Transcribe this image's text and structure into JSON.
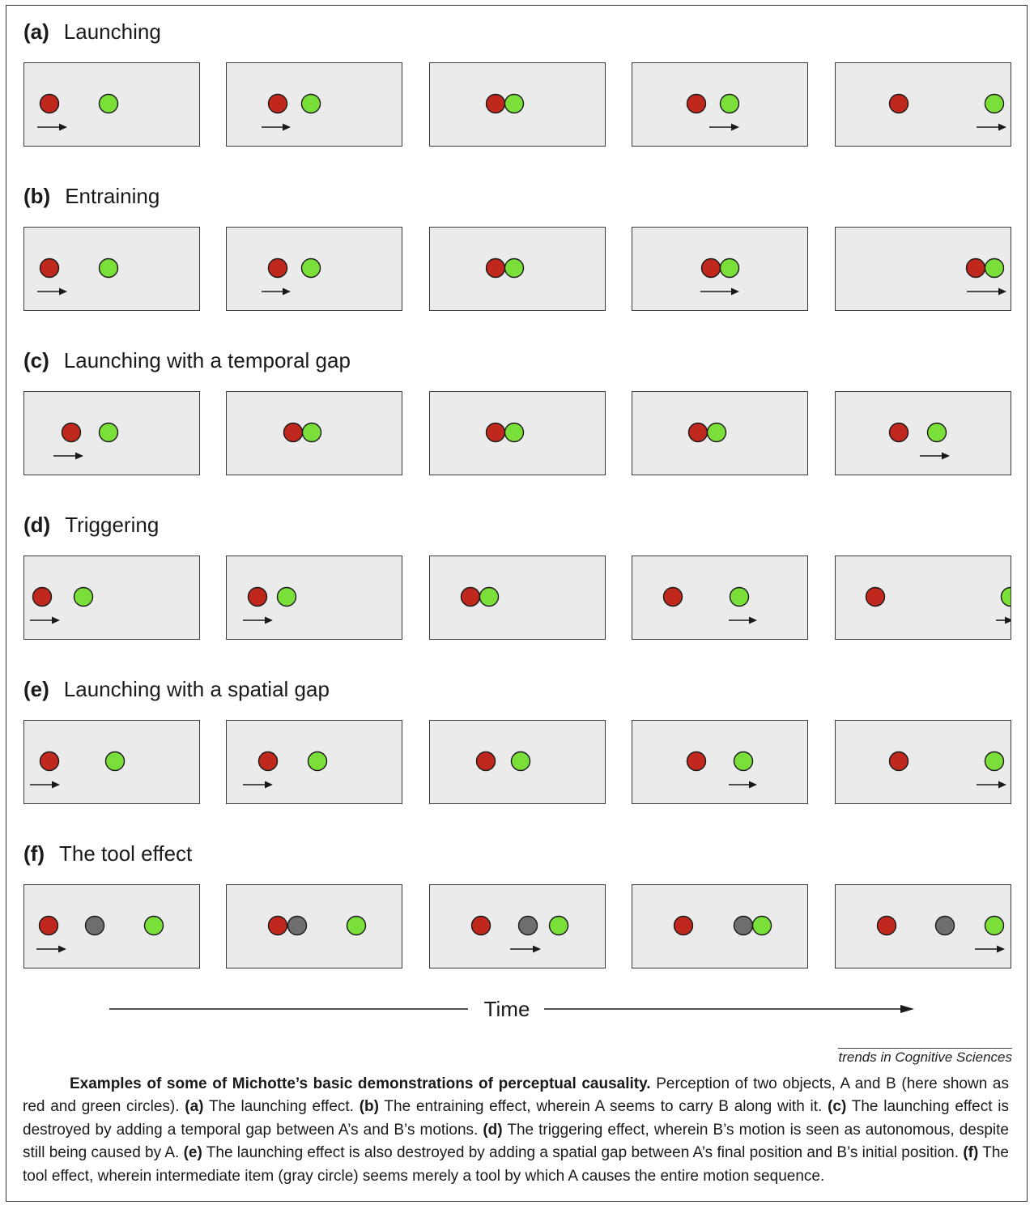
{
  "colors": {
    "red": "#c0271d",
    "green": "#7bdf3a",
    "gray": "#6e6e6e",
    "panel": "#ebebeb",
    "stroke": "#1a1a1a"
  },
  "rows": [
    {
      "tag": "(a)",
      "title": "Launching",
      "frames": [
        {
          "circles": [
            [
              "red",
              60
            ],
            [
              "green",
              133
            ]
          ],
          "arrows": [
            [
              45,
              82
            ]
          ]
        },
        {
          "circles": [
            [
              "red",
              342
            ],
            [
              "green",
              383
            ]
          ],
          "arrows": [
            [
              322,
              358
            ]
          ]
        },
        {
          "circles": [
            [
              "red",
              611
            ],
            [
              "green",
              634
            ]
          ],
          "arrows": []
        },
        {
          "circles": [
            [
              "red",
              859
            ],
            [
              "green",
              900
            ]
          ],
          "arrows": [
            [
              875,
              912
            ]
          ]
        },
        {
          "circles": [
            [
              "red",
              1109
            ],
            [
              "green",
              1227
            ]
          ],
          "arrows": [
            [
              1205,
              1242
            ]
          ]
        }
      ]
    },
    {
      "tag": "(b)",
      "title": "Entraining",
      "frames": [
        {
          "circles": [
            [
              "red",
              60
            ],
            [
              "green",
              133
            ]
          ],
          "arrows": [
            [
              45,
              82
            ]
          ]
        },
        {
          "circles": [
            [
              "red",
              342
            ],
            [
              "green",
              383
            ]
          ],
          "arrows": [
            [
              322,
              358
            ]
          ]
        },
        {
          "circles": [
            [
              "red",
              611
            ],
            [
              "green",
              634
            ]
          ],
          "arrows": []
        },
        {
          "circles": [
            [
              "red",
              877
            ],
            [
              "green",
              900
            ]
          ],
          "arrows": [
            [
              864,
              912
            ]
          ]
        },
        {
          "circles": [
            [
              "red",
              1204
            ],
            [
              "green",
              1227
            ]
          ],
          "arrows": [
            [
              1193,
              1242
            ]
          ]
        }
      ]
    },
    {
      "tag": "(c)",
      "title": "Launching with a temporal gap",
      "frames": [
        {
          "circles": [
            [
              "red",
              87
            ],
            [
              "green",
              133
            ]
          ],
          "arrows": [
            [
              65,
              102
            ]
          ]
        },
        {
          "circles": [
            [
              "red",
              361
            ],
            [
              "green",
              384
            ]
          ],
          "arrows": []
        },
        {
          "circles": [
            [
              "red",
              611
            ],
            [
              "green",
              634
            ]
          ],
          "arrows": []
        },
        {
          "circles": [
            [
              "red",
              861
            ],
            [
              "green",
              884
            ]
          ],
          "arrows": []
        },
        {
          "circles": [
            [
              "red",
              1109
            ],
            [
              "green",
              1156
            ]
          ],
          "arrows": [
            [
              1135,
              1172
            ]
          ]
        }
      ]
    },
    {
      "tag": "(d)",
      "title": "Triggering",
      "frames": [
        {
          "circles": [
            [
              "red",
              51
            ],
            [
              "green",
              102
            ]
          ],
          "arrows": [
            [
              36,
              73
            ]
          ]
        },
        {
          "circles": [
            [
              "red",
              317
            ],
            [
              "green",
              353
            ]
          ],
          "arrows": [
            [
              299,
              336
            ]
          ]
        },
        {
          "circles": [
            [
              "red",
              580
            ],
            [
              "green",
              603
            ]
          ],
          "arrows": []
        },
        {
          "circles": [
            [
              "red",
              830
            ],
            [
              "green",
              912
            ]
          ],
          "arrows": [
            [
              899,
              934
            ]
          ]
        },
        {
          "circles": [
            [
              "red",
              1080
            ],
            [
              "green",
              1247
            ]
          ],
          "arrows": [
            [
              1229,
              1250
            ]
          ]
        }
      ]
    },
    {
      "tag": "(e)",
      "title": "Launching with a spatial gap",
      "frames": [
        {
          "circles": [
            [
              "red",
              60
            ],
            [
              "green",
              141
            ]
          ],
          "arrows": [
            [
              36,
              73
            ]
          ]
        },
        {
          "circles": [
            [
              "red",
              330
            ],
            [
              "green",
              391
            ]
          ],
          "arrows": [
            [
              299,
              336
            ]
          ]
        },
        {
          "circles": [
            [
              "red",
              599
            ],
            [
              "green",
              642
            ]
          ],
          "arrows": []
        },
        {
          "circles": [
            [
              "red",
              859
            ],
            [
              "green",
              917
            ]
          ],
          "arrows": [
            [
              899,
              934
            ]
          ]
        },
        {
          "circles": [
            [
              "red",
              1109
            ],
            [
              "green",
              1227
            ]
          ],
          "arrows": [
            [
              1205,
              1242
            ]
          ]
        }
      ]
    },
    {
      "tag": "(f)",
      "title": "The tool effect",
      "frames": [
        {
          "circles": [
            [
              "red",
              59
            ],
            [
              "gray",
              116
            ],
            [
              "green",
              189
            ]
          ],
          "arrows": [
            [
              44,
              81
            ]
          ]
        },
        {
          "circles": [
            [
              "red",
              342
            ],
            [
              "gray",
              366
            ],
            [
              "green",
              439
            ]
          ],
          "arrows": []
        },
        {
          "circles": [
            [
              "red",
              593
            ],
            [
              "gray",
              651
            ],
            [
              "green",
              689
            ]
          ],
          "arrows": [
            [
              629,
              667
            ]
          ]
        },
        {
          "circles": [
            [
              "red",
              843
            ],
            [
              "gray",
              917
            ],
            [
              "green",
              940
            ]
          ],
          "arrows": []
        },
        {
          "circles": [
            [
              "red",
              1094
            ],
            [
              "gray",
              1166
            ],
            [
              "green",
              1227
            ]
          ],
          "arrows": [
            [
              1203,
              1240
            ]
          ]
        }
      ]
    }
  ],
  "time_label": "Time",
  "source": "trends in Cognitive Sciences",
  "caption": {
    "lead": "Examples of some of Michotte’s basic demonstrations of perceptual causality.",
    "intro": " Perception of two objects, A and B (here shown as red and green circles). ",
    "a_tag": "(a)",
    "a_text": " The launching effect. ",
    "b_tag": "(b)",
    "b_text": " The entraining effect, wherein A seems to carry B along with it. ",
    "c_tag": "(c)",
    "c_text": " The launching effect is destroyed by adding a temporal gap between A’s and B’s motions. ",
    "d_tag": "(d)",
    "d_text": " The triggering effect, wherein B’s motion is seen as autonomous, despite still being caused by A. ",
    "e_tag": "(e)",
    "e_text": " The launching effect is also destroyed by adding a spatial gap between A’s final position and B’s initial position. ",
    "f_tag": "(f)",
    "f_text": " The tool effect, wherein intermediate item (gray circle) seems merely a tool by which A causes the entire motion sequence."
  }
}
